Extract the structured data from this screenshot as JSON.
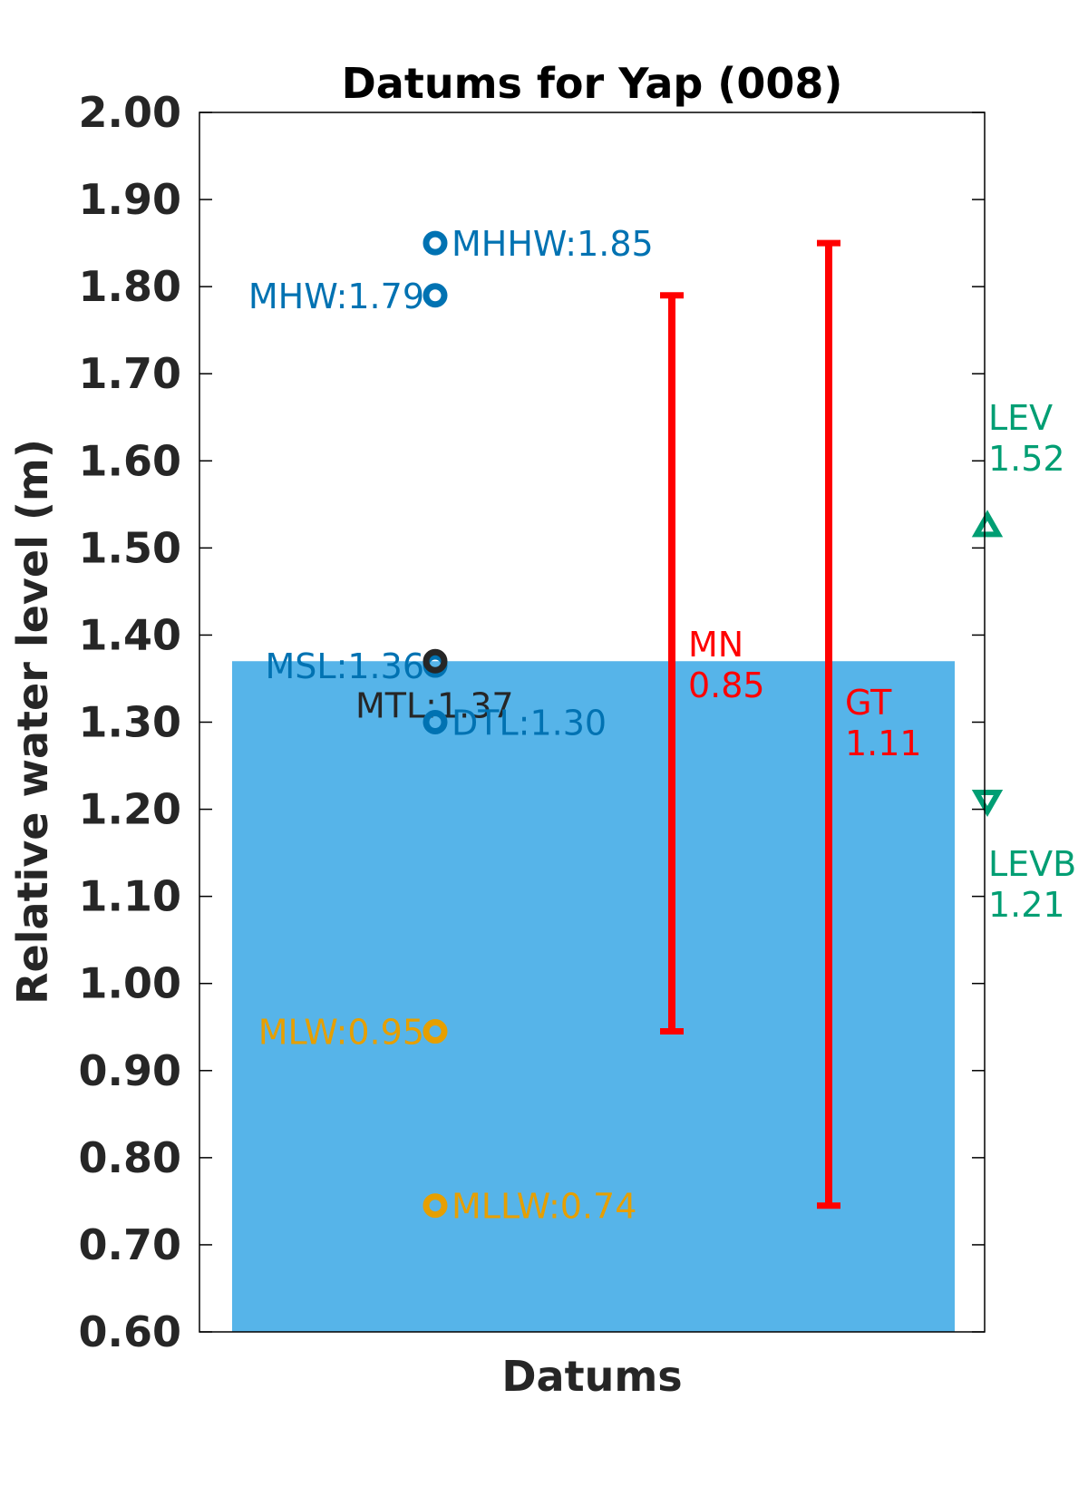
{
  "chart_data": {
    "type": "scatter",
    "title": "Datums for Yap (008)",
    "xlabel": "Datums",
    "ylabel": "Relative water level (m)",
    "ylim": [
      0.6,
      2.0
    ],
    "yticks": [
      "0.60",
      "0.70",
      "0.80",
      "0.90",
      "1.00",
      "1.10",
      "1.20",
      "1.30",
      "1.40",
      "1.50",
      "1.60",
      "1.70",
      "1.80",
      "1.90",
      "2.00"
    ],
    "grid": false,
    "background_bar": {
      "top": 1.37,
      "bottom": 0.6,
      "color": "#56b4e9"
    },
    "datums": [
      {
        "label": "MHHW:1.85",
        "value": 1.85,
        "color": "#0072b2",
        "side": "right"
      },
      {
        "label": "MHW:1.79",
        "value": 1.79,
        "color": "#0072b2",
        "side": "left"
      },
      {
        "label": "MSL:1.36",
        "value": 1.365,
        "color": "#0072b2",
        "side": "left"
      },
      {
        "label": "MTL:1.37",
        "value": 1.37,
        "color": "#262626",
        "side": "below"
      },
      {
        "label": "DTL:1.30",
        "value": 1.3,
        "color": "#0072b2",
        "side": "right"
      },
      {
        "label": "MLW:0.95",
        "value": 0.945,
        "color": "#e69f00",
        "side": "left"
      },
      {
        "label": "MLLW:0.74",
        "value": 0.745,
        "color": "#e69f00",
        "side": "right"
      }
    ],
    "ranges": [
      {
        "name": "MN",
        "value_label": "0.85",
        "low": 0.945,
        "high": 1.79,
        "color": "#ff0000"
      },
      {
        "name": "GT",
        "value_label": "1.11",
        "low": 0.745,
        "high": 1.85,
        "color": "#ff0000"
      }
    ],
    "levels": [
      {
        "name": "LEV",
        "value_label": "1.52",
        "value": 1.525,
        "marker": "triangle-up",
        "color": "#009e73"
      },
      {
        "name": "LEVB",
        "value_label": "1.21",
        "value": 1.21,
        "marker": "triangle-down",
        "color": "#009e73"
      }
    ]
  }
}
